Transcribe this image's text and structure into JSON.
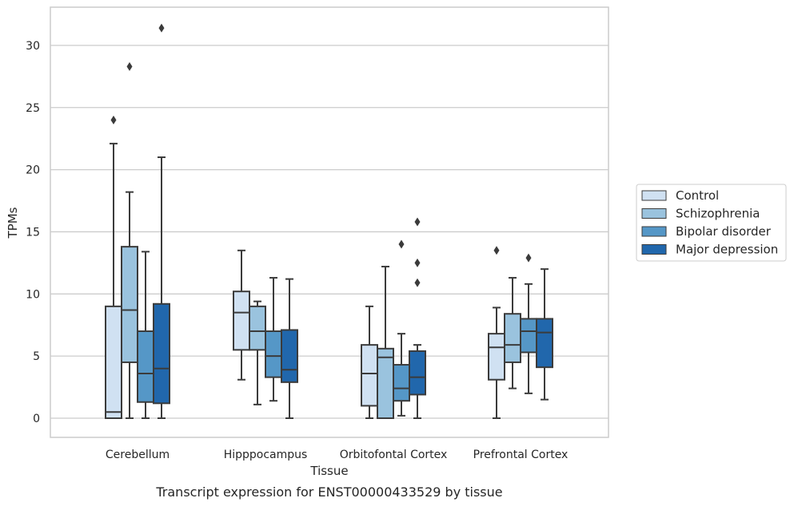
{
  "chart_data": {
    "type": "box",
    "title": "",
    "caption": "Transcript expression for ENST00000433529 by tissue",
    "xlabel": "Tissue",
    "ylabel": "TPMs",
    "ylim": [
      -1.5,
      33
    ],
    "yticks": [
      0,
      5,
      10,
      15,
      20,
      25,
      30
    ],
    "grid": "horizontal",
    "legend_position": "right",
    "categories": [
      "Cerebellum",
      "Hipppocampus",
      "Orbitofontal Cortex",
      "Prefrontal Cortex"
    ],
    "series": [
      {
        "name": "Control",
        "color": "#d0e1f2",
        "boxes": [
          {
            "whisker_low": 0,
            "q1": 0,
            "median": 0.5,
            "q3": 9.0,
            "whisker_high": 22.1,
            "outliers": [
              24.0
            ]
          },
          {
            "whisker_low": 3.1,
            "q1": 5.5,
            "median": 8.5,
            "q3": 10.2,
            "whisker_high": 13.5,
            "outliers": []
          },
          {
            "whisker_low": 0,
            "q1": 1.0,
            "median": 3.6,
            "q3": 5.9,
            "whisker_high": 9.0,
            "outliers": []
          },
          {
            "whisker_low": 0,
            "q1": 3.1,
            "median": 5.7,
            "q3": 6.8,
            "whisker_high": 8.9,
            "outliers": [
              13.5
            ]
          }
        ]
      },
      {
        "name": "Schizophrenia",
        "color": "#9ac3de",
        "boxes": [
          {
            "whisker_low": 0,
            "q1": 4.5,
            "median": 8.7,
            "q3": 13.8,
            "whisker_high": 18.2,
            "outliers": [
              28.3
            ]
          },
          {
            "whisker_low": 1.1,
            "q1": 5.5,
            "median": 7.0,
            "q3": 9.0,
            "whisker_high": 9.4,
            "outliers": []
          },
          {
            "whisker_low": 0,
            "q1": 0,
            "median": 4.9,
            "q3": 5.6,
            "whisker_high": 12.2,
            "outliers": []
          },
          {
            "whisker_low": 2.4,
            "q1": 4.5,
            "median": 5.9,
            "q3": 8.4,
            "whisker_high": 11.3,
            "outliers": []
          }
        ]
      },
      {
        "name": "Bipolar disorder",
        "color": "#5597c7",
        "boxes": [
          {
            "whisker_low": 0,
            "q1": 1.3,
            "median": 3.6,
            "q3": 7.0,
            "whisker_high": 13.4,
            "outliers": []
          },
          {
            "whisker_low": 1.4,
            "q1": 3.3,
            "median": 5.0,
            "q3": 7.0,
            "whisker_high": 11.3,
            "outliers": []
          },
          {
            "whisker_low": 0.2,
            "q1": 1.4,
            "median": 2.4,
            "q3": 4.3,
            "whisker_high": 6.8,
            "outliers": [
              14.0
            ]
          },
          {
            "whisker_low": 2.0,
            "q1": 5.3,
            "median": 7.0,
            "q3": 8.0,
            "whisker_high": 10.8,
            "outliers": [
              12.9
            ]
          }
        ]
      },
      {
        "name": "Major depression",
        "color": "#2167ac",
        "boxes": [
          {
            "whisker_low": 0,
            "q1": 1.2,
            "median": 4.0,
            "q3": 9.2,
            "whisker_high": 21.0,
            "outliers": [
              31.4
            ]
          },
          {
            "whisker_low": 0,
            "q1": 2.9,
            "median": 3.9,
            "q3": 7.1,
            "whisker_high": 11.2,
            "outliers": []
          },
          {
            "whisker_low": 0,
            "q1": 1.9,
            "median": 3.3,
            "q3": 5.4,
            "whisker_high": 5.9,
            "outliers": [
              10.9,
              12.5,
              15.8
            ]
          },
          {
            "whisker_low": 1.5,
            "q1": 4.1,
            "median": 6.9,
            "q3": 8.0,
            "whisker_high": 12.0,
            "outliers": []
          }
        ]
      }
    ]
  }
}
